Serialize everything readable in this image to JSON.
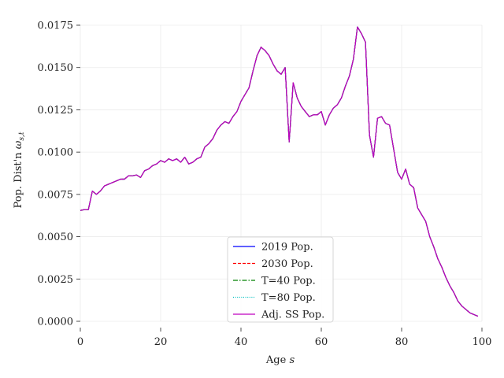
{
  "chart_data": {
    "type": "line",
    "xlabel": "Age s",
    "ylabel": "Pop. Dist'n ωs,t",
    "xlim": [
      0,
      99
    ],
    "ylim": [
      0,
      0.0175
    ],
    "xticks": [
      0,
      20,
      40,
      60,
      80,
      100
    ],
    "xtick_labels": [
      "0",
      "20",
      "40",
      "60",
      "80",
      "100"
    ],
    "yticks": [
      0,
      0.0025,
      0.005,
      0.0075,
      0.01,
      0.0125,
      0.015,
      0.0175
    ],
    "ytick_labels": [
      "0.0000",
      "0.0025",
      "0.0050",
      "0.0075",
      "0.0100",
      "0.0125",
      "0.0150",
      "0.0175"
    ],
    "grid": true,
    "legend_position": "bottom-center",
    "x": [
      0,
      1,
      2,
      3,
      4,
      5,
      6,
      7,
      8,
      9,
      10,
      11,
      12,
      13,
      14,
      15,
      16,
      17,
      18,
      19,
      20,
      21,
      22,
      23,
      24,
      25,
      26,
      27,
      28,
      29,
      30,
      31,
      32,
      33,
      34,
      35,
      36,
      37,
      38,
      39,
      40,
      41,
      42,
      43,
      44,
      45,
      46,
      47,
      48,
      49,
      50,
      51,
      52,
      53,
      54,
      55,
      56,
      57,
      58,
      59,
      60,
      61,
      62,
      63,
      64,
      65,
      66,
      67,
      68,
      69,
      70,
      71,
      72,
      73,
      74,
      75,
      76,
      77,
      78,
      79,
      80,
      81,
      82,
      83,
      84,
      85,
      86,
      87,
      88,
      89,
      90,
      91,
      92,
      93,
      94,
      95,
      96,
      97,
      98,
      99
    ],
    "series": [
      {
        "name": "2019 Pop.",
        "color": "#0000ff",
        "dash": "solid",
        "values": [
          0.00655,
          0.0066,
          0.0066,
          0.0077,
          0.0075,
          0.0077,
          0.008,
          0.0081,
          0.0082,
          0.0083,
          0.0084,
          0.0084,
          0.0086,
          0.0086,
          0.00865,
          0.0085,
          0.0089,
          0.009,
          0.0092,
          0.0093,
          0.0095,
          0.0094,
          0.0096,
          0.0095,
          0.0096,
          0.0094,
          0.0097,
          0.0093,
          0.0094,
          0.0096,
          0.0097,
          0.0103,
          0.0105,
          0.0108,
          0.0113,
          0.0116,
          0.0118,
          0.0117,
          0.0121,
          0.0124,
          0.013,
          0.0134,
          0.0138,
          0.0148,
          0.0157,
          0.0162,
          0.016,
          0.0157,
          0.0152,
          0.0148,
          0.0146,
          0.015,
          0.0106,
          0.0141,
          0.0132,
          0.0127,
          0.0124,
          0.0121,
          0.0122,
          0.0122,
          0.0124,
          0.0116,
          0.0122,
          0.0126,
          0.0128,
          0.0132,
          0.0139,
          0.0145,
          0.0155,
          0.0174,
          0.017,
          0.0165,
          0.011,
          0.0097,
          0.012,
          0.0121,
          0.0117,
          0.0116,
          0.0102,
          0.0088,
          0.0084,
          0.009,
          0.0081,
          0.0079,
          0.0067,
          0.0063,
          0.0059,
          0.005,
          0.0044,
          0.0037,
          0.0032,
          0.0026,
          0.0021,
          0.0017,
          0.0012,
          0.0009,
          0.0007,
          0.0005,
          0.0004,
          0.0003
        ]
      },
      {
        "name": "2030 Pop.",
        "color": "#ff0000",
        "dash": "dashed",
        "values": [
          0.00655,
          0.0066,
          0.0066,
          0.0077,
          0.0075,
          0.0077,
          0.008,
          0.0081,
          0.0082,
          0.0083,
          0.0084,
          0.0084,
          0.0086,
          0.0086,
          0.00865,
          0.0085,
          0.0089,
          0.009,
          0.0092,
          0.0093,
          0.0095,
          0.0094,
          0.0096,
          0.0095,
          0.0096,
          0.0094,
          0.0097,
          0.0093,
          0.0094,
          0.0096,
          0.0097,
          0.0103,
          0.0105,
          0.0108,
          0.0113,
          0.0116,
          0.0118,
          0.0117,
          0.0121,
          0.0124,
          0.013,
          0.0134,
          0.0138,
          0.0148,
          0.0157,
          0.0162,
          0.016,
          0.0157,
          0.0152,
          0.0148,
          0.0146,
          0.015,
          0.0106,
          0.0141,
          0.0132,
          0.0127,
          0.0124,
          0.0121,
          0.0122,
          0.0122,
          0.0124,
          0.0116,
          0.0122,
          0.0126,
          0.0128,
          0.0132,
          0.0139,
          0.0145,
          0.0155,
          0.0174,
          0.017,
          0.0165,
          0.011,
          0.0097,
          0.012,
          0.0121,
          0.0117,
          0.0116,
          0.0102,
          0.0088,
          0.0084,
          0.009,
          0.0081,
          0.0079,
          0.0067,
          0.0063,
          0.0059,
          0.005,
          0.0044,
          0.0037,
          0.0032,
          0.0026,
          0.0021,
          0.0017,
          0.0012,
          0.0009,
          0.0007,
          0.0005,
          0.0004,
          0.0003
        ]
      },
      {
        "name": "T=40 Pop.",
        "color": "#008000",
        "dash": "dashdot",
        "values": [
          0.00655,
          0.0066,
          0.0066,
          0.0077,
          0.0075,
          0.0077,
          0.008,
          0.0081,
          0.0082,
          0.0083,
          0.0084,
          0.0084,
          0.0086,
          0.0086,
          0.00865,
          0.0085,
          0.0089,
          0.009,
          0.0092,
          0.0093,
          0.0095,
          0.0094,
          0.0096,
          0.0095,
          0.0096,
          0.0094,
          0.0097,
          0.0093,
          0.0094,
          0.0096,
          0.0097,
          0.0103,
          0.0105,
          0.0108,
          0.0113,
          0.0116,
          0.0118,
          0.0117,
          0.0121,
          0.0124,
          0.013,
          0.0134,
          0.0138,
          0.0148,
          0.0157,
          0.0162,
          0.016,
          0.0157,
          0.0152,
          0.0148,
          0.0146,
          0.015,
          0.0106,
          0.0141,
          0.0132,
          0.0127,
          0.0124,
          0.0121,
          0.0122,
          0.0122,
          0.0124,
          0.0116,
          0.0122,
          0.0126,
          0.0128,
          0.0132,
          0.0139,
          0.0145,
          0.0155,
          0.0174,
          0.017,
          0.0165,
          0.011,
          0.0097,
          0.012,
          0.0121,
          0.0117,
          0.0116,
          0.0102,
          0.0088,
          0.0084,
          0.009,
          0.0081,
          0.0079,
          0.0067,
          0.0063,
          0.0059,
          0.005,
          0.0044,
          0.0037,
          0.0032,
          0.0026,
          0.0021,
          0.0017,
          0.0012,
          0.0009,
          0.0007,
          0.0005,
          0.0004,
          0.0003
        ]
      },
      {
        "name": "T=80 Pop.",
        "color": "#00bfbf",
        "dash": "dotted",
        "values": [
          0.00655,
          0.0066,
          0.0066,
          0.0077,
          0.0075,
          0.0077,
          0.008,
          0.0081,
          0.0082,
          0.0083,
          0.0084,
          0.0084,
          0.0086,
          0.0086,
          0.00865,
          0.0085,
          0.0089,
          0.009,
          0.0092,
          0.0093,
          0.0095,
          0.0094,
          0.0096,
          0.0095,
          0.0096,
          0.0094,
          0.0097,
          0.0093,
          0.0094,
          0.0096,
          0.0097,
          0.0103,
          0.0105,
          0.0108,
          0.0113,
          0.0116,
          0.0118,
          0.0117,
          0.0121,
          0.0124,
          0.013,
          0.0134,
          0.0138,
          0.0148,
          0.0157,
          0.0162,
          0.016,
          0.0157,
          0.0152,
          0.0148,
          0.0146,
          0.015,
          0.0106,
          0.0141,
          0.0132,
          0.0127,
          0.0124,
          0.0121,
          0.0122,
          0.0122,
          0.0124,
          0.0116,
          0.0122,
          0.0126,
          0.0128,
          0.0132,
          0.0139,
          0.0145,
          0.0155,
          0.0174,
          0.017,
          0.0165,
          0.011,
          0.0097,
          0.012,
          0.0121,
          0.0117,
          0.0116,
          0.0102,
          0.0088,
          0.0084,
          0.009,
          0.0081,
          0.0079,
          0.0067,
          0.0063,
          0.0059,
          0.005,
          0.0044,
          0.0037,
          0.0032,
          0.0026,
          0.0021,
          0.0017,
          0.0012,
          0.0009,
          0.0007,
          0.0005,
          0.0004,
          0.0003
        ]
      },
      {
        "name": "Adj. SS Pop.",
        "color": "#bf00bf",
        "dash": "solid",
        "values": [
          0.00655,
          0.0066,
          0.0066,
          0.0077,
          0.0075,
          0.0077,
          0.008,
          0.0081,
          0.0082,
          0.0083,
          0.0084,
          0.0084,
          0.0086,
          0.0086,
          0.00865,
          0.0085,
          0.0089,
          0.009,
          0.0092,
          0.0093,
          0.0095,
          0.0094,
          0.0096,
          0.0095,
          0.0096,
          0.0094,
          0.0097,
          0.0093,
          0.0094,
          0.0096,
          0.0097,
          0.0103,
          0.0105,
          0.0108,
          0.0113,
          0.0116,
          0.0118,
          0.0117,
          0.0121,
          0.0124,
          0.013,
          0.0134,
          0.0138,
          0.0148,
          0.0157,
          0.0162,
          0.016,
          0.0157,
          0.0152,
          0.0148,
          0.0146,
          0.015,
          0.0106,
          0.0141,
          0.0132,
          0.0127,
          0.0124,
          0.0121,
          0.0122,
          0.0122,
          0.0124,
          0.0116,
          0.0122,
          0.0126,
          0.0128,
          0.0132,
          0.0139,
          0.0145,
          0.0155,
          0.0174,
          0.017,
          0.0165,
          0.011,
          0.0097,
          0.012,
          0.0121,
          0.0117,
          0.0116,
          0.0102,
          0.0088,
          0.0084,
          0.009,
          0.0081,
          0.0079,
          0.0067,
          0.0063,
          0.0059,
          0.005,
          0.0044,
          0.0037,
          0.0032,
          0.0026,
          0.0021,
          0.0017,
          0.0012,
          0.0009,
          0.0007,
          0.0005,
          0.0004,
          0.0003
        ]
      }
    ]
  }
}
